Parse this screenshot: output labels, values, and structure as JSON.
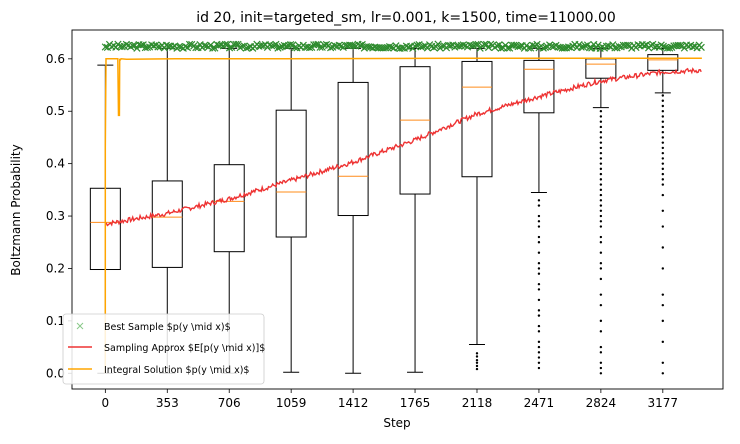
{
  "chart_data": {
    "type": "box",
    "title": "id 20, init=targeted_sm, lr=0.001, k=1500, time=11000.00",
    "xlabel": "Step",
    "ylabel": "Boltzmann Probability",
    "xlim": [
      -190,
      3520
    ],
    "ylim": [
      -0.03,
      0.655
    ],
    "x_ticks": [
      0,
      353,
      706,
      1059,
      1412,
      1765,
      2118,
      2471,
      2824,
      3177
    ],
    "x_tick_labels": [
      "0",
      "353",
      "706",
      "1059",
      "1412",
      "1765",
      "2118",
      "2471",
      "2824",
      "3177"
    ],
    "y_ticks": [
      0.0,
      0.1,
      0.2,
      0.3,
      0.4,
      0.5,
      0.6
    ],
    "y_tick_labels": [
      "0.0",
      "0.1",
      "0.2",
      "0.3",
      "0.4",
      "0.5",
      "0.6"
    ],
    "grid": false,
    "legend_position": "lower-left",
    "boxes": [
      {
        "x": 0,
        "whisker_low": 0.0,
        "q1": 0.198,
        "median": 0.288,
        "q3": 0.353,
        "whisker_high": 0.588
      },
      {
        "x": 353,
        "whisker_low": 0.0,
        "q1": 0.202,
        "median": 0.298,
        "q3": 0.367,
        "whisker_high": 0.62
      },
      {
        "x": 706,
        "whisker_low": 0.0,
        "q1": 0.232,
        "median": 0.328,
        "q3": 0.398,
        "whisker_high": 0.62
      },
      {
        "x": 1059,
        "whisker_low": 0.002,
        "q1": 0.26,
        "median": 0.346,
        "q3": 0.502,
        "whisker_high": 0.62
      },
      {
        "x": 1412,
        "whisker_low": 0.0,
        "q1": 0.301,
        "median": 0.376,
        "q3": 0.555,
        "whisker_high": 0.62
      },
      {
        "x": 1765,
        "whisker_low": 0.002,
        "q1": 0.342,
        "median": 0.483,
        "q3": 0.585,
        "whisker_high": 0.62
      },
      {
        "x": 2118,
        "whisker_low": 0.055,
        "q1": 0.375,
        "median": 0.546,
        "q3": 0.595,
        "whisker_high": 0.62
      },
      {
        "x": 2471,
        "whisker_low": 0.345,
        "q1": 0.497,
        "median": 0.58,
        "q3": 0.597,
        "whisker_high": 0.62
      },
      {
        "x": 2824,
        "whisker_low": 0.507,
        "q1": 0.563,
        "median": 0.59,
        "q3": 0.6,
        "whisker_high": 0.62
      },
      {
        "x": 3177,
        "whisker_low": 0.535,
        "q1": 0.578,
        "median": 0.598,
        "q3": 0.608,
        "whisker_high": 0.62
      }
    ],
    "outliers": [
      {
        "x": 2118,
        "values": [
          0.038,
          0.032,
          0.025,
          0.02,
          0.014,
          0.008
        ]
      },
      {
        "x": 2471,
        "values": [
          0.33,
          0.32,
          0.3,
          0.29,
          0.28,
          0.26,
          0.25,
          0.23,
          0.21,
          0.2,
          0.19,
          0.17,
          0.16,
          0.14,
          0.12,
          0.11,
          0.09,
          0.08,
          0.06,
          0.05,
          0.04,
          0.03,
          0.02,
          0.01
        ]
      },
      {
        "x": 2824,
        "values": [
          0.5,
          0.49,
          0.48,
          0.47,
          0.46,
          0.45,
          0.44,
          0.43,
          0.42,
          0.41,
          0.4,
          0.39,
          0.38,
          0.37,
          0.36,
          0.35,
          0.34,
          0.33,
          0.32,
          0.31,
          0.3,
          0.29,
          0.28,
          0.26,
          0.25,
          0.23,
          0.21,
          0.2,
          0.18,
          0.15,
          0.13,
          0.1,
          0.08,
          0.05,
          0.04,
          0.02,
          0.01,
          0.0
        ]
      },
      {
        "x": 3177,
        "values": [
          0.53,
          0.52,
          0.51,
          0.5,
          0.49,
          0.48,
          0.47,
          0.46,
          0.45,
          0.44,
          0.43,
          0.42,
          0.41,
          0.4,
          0.39,
          0.38,
          0.37,
          0.36,
          0.34,
          0.31,
          0.28,
          0.24,
          0.2,
          0.15,
          0.13,
          0.1,
          0.06,
          0.02,
          0.0
        ]
      }
    ],
    "series": [
      {
        "name": "Best Sample $p(y \\mid x)$",
        "type": "scatter",
        "marker": "x",
        "color": "#2e8b2e",
        "x_range": [
          0,
          3400
        ],
        "value_approx": 0.624,
        "jitter": 0.004
      },
      {
        "name": "Sampling Approx $E[p(y \\mid x)]$",
        "type": "line",
        "color": "#ee3333",
        "x": [
          0,
          353,
          706,
          1059,
          1412,
          1765,
          2118,
          2471,
          2824,
          3177,
          3400
        ],
        "values": [
          0.285,
          0.305,
          0.333,
          0.368,
          0.403,
          0.445,
          0.495,
          0.528,
          0.558,
          0.575,
          0.578
        ]
      },
      {
        "name": "Integral Solution $p(y \\mid x)$",
        "type": "line",
        "color": "#ffa500",
        "x": [
          0,
          0,
          4,
          8,
          28,
          50,
          70,
          71,
          75,
          80,
          82,
          85,
          90,
          120,
          400,
          1000,
          2000,
          3000,
          3400
        ],
        "values": [
          0.0,
          0.43,
          0.6,
          0.6,
          0.6,
          0.6,
          0.6,
          0.6,
          0.492,
          0.492,
          0.6,
          0.598,
          0.6,
          0.599,
          0.6,
          0.6,
          0.601,
          0.601,
          0.601
        ]
      }
    ],
    "legend": [
      "Best Sample $p(y \\mid x)$",
      "Sampling Approx $E[p(y \\mid x)]$",
      "Integral Solution $p(y \\mid x)$"
    ]
  }
}
